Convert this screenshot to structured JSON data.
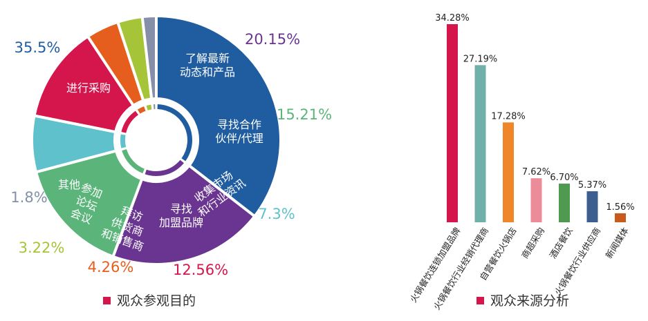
{
  "colors": {
    "purchase": "#1f5da0",
    "learn": "#6a3590",
    "partner": "#5bb57a",
    "market": "#5fc1cc",
    "franchise": "#d4164c",
    "visit": "#e65e1e",
    "forum": "#a6c437",
    "other": "#8590a8",
    "legend_square": "#d4164c",
    "bar_red": "#d4164c",
    "bar_teal": "#6fb1aa",
    "bar_orange": "#f0862a",
    "bar_pink": "#ec8c99",
    "bar_green": "#4f9a4e",
    "bar_navy": "#3c5f8f",
    "bar_darkorange": "#c75a1c"
  },
  "chart_data": [
    {
      "type": "pie",
      "title": "观众参观目的",
      "slices": [
        {
          "label": "进行采购",
          "value": 35.5,
          "value_text": "35.5%",
          "color_key": "purchase",
          "label_color": "#1f5da0"
        },
        {
          "label": "了解最新动态和产品",
          "value": 20.15,
          "value_text": "20.15%",
          "color_key": "learn",
          "label_color": "#6a3590"
        },
        {
          "label": "寻找合作伙伴/代理",
          "value": 15.21,
          "value_text": "15.21%",
          "color_key": "partner",
          "label_color": "#5bb57a"
        },
        {
          "label": "收集市场和行业资讯",
          "value": 7.3,
          "value_text": "7.3%",
          "color_key": "market",
          "label_color": "#5fc1cc"
        },
        {
          "label": "寻找加盟品牌",
          "value": 12.56,
          "value_text": "12.56%",
          "color_key": "franchise",
          "label_color": "#d4164c"
        },
        {
          "label": "拜访供货商和销售商",
          "value": 4.26,
          "value_text": "4.26%",
          "color_key": "visit",
          "label_color": "#e65e1e"
        },
        {
          "label": "参加论坛会议",
          "value": 3.22,
          "value_text": "3.22%",
          "color_key": "forum",
          "label_color": "#a6c437"
        },
        {
          "label": "其他",
          "value": 1.8,
          "value_text": "1.8%",
          "color_key": "other",
          "label_color": "#8590a8"
        }
      ]
    },
    {
      "type": "bar",
      "title": "观众来源分析",
      "categories": [
        "火锅餐饮连锁加盟品牌",
        "火锅餐饮行业经销代理商",
        "自营餐饮火锅店",
        "商超采购",
        "酒店餐饮",
        "火锅餐饮行业供应商",
        "新闻媒体"
      ],
      "values": [
        34.28,
        27.19,
        17.28,
        7.62,
        6.7,
        5.37,
        1.56
      ],
      "value_labels": [
        "34.28%",
        "27.19%",
        "17.28%",
        "7.62%",
        "6.70%",
        "5.37%",
        "1.56%"
      ],
      "bar_color_keys": [
        "bar_red",
        "bar_teal",
        "bar_orange",
        "bar_pink",
        "bar_green",
        "bar_navy",
        "bar_darkorange"
      ],
      "ylim": [
        0,
        34.28
      ],
      "grid": false
    }
  ]
}
